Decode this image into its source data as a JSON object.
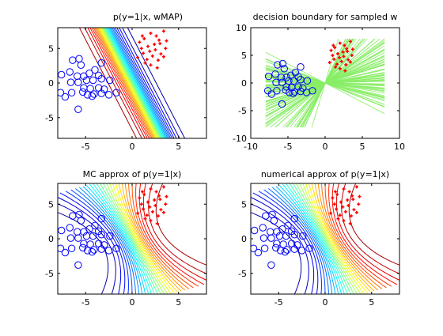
{
  "colors": {
    "class_neg": "#0000ff",
    "class_pos": "#ff0000",
    "sampled_boundary": "#88ee66",
    "axes": "#000000"
  },
  "classes": {
    "negative_marker": "circle",
    "positive_marker": "plus"
  },
  "chart_data": [
    {
      "type": "contour",
      "title": "p(y=1|x, wMAP)",
      "xlim": [
        -8,
        8
      ],
      "ylim": [
        -8,
        8
      ],
      "xticks": [
        -5,
        0,
        5
      ],
      "yticks": [
        -5,
        0,
        5
      ],
      "boundary_model": "linear",
      "w_map": [
        -1.3,
        -0.5
      ],
      "contour_levels": 30,
      "colormap": "jet"
    },
    {
      "type": "line",
      "title": "decision boundary for sampled w",
      "xlim": [
        -10,
        10
      ],
      "ylim": [
        -10,
        10
      ],
      "xticks": [
        -10,
        -5,
        0,
        5,
        10
      ],
      "yticks": [
        -10,
        -5,
        0,
        5,
        10
      ],
      "sample_count": 100,
      "line_extent": [
        -8,
        8
      ]
    },
    {
      "type": "contour",
      "title": "MC approx of p(y=1|x)",
      "xlim": [
        -8,
        8
      ],
      "ylim": [
        -8,
        8
      ],
      "xticks": [
        -5,
        0,
        5
      ],
      "yticks": [
        -5,
        0,
        5
      ],
      "contour_levels": 30,
      "colormap": "jet"
    },
    {
      "type": "contour",
      "title": "numerical approx of p(y=1|x)",
      "xlim": [
        -8,
        8
      ],
      "ylim": [
        -8,
        8
      ],
      "xticks": [
        -5,
        0,
        5
      ],
      "yticks": [
        -5,
        0,
        5
      ],
      "contour_levels": 30,
      "colormap": "jet"
    }
  ],
  "points": {
    "negative": [
      [
        -6.4,
        3.3
      ],
      [
        -5.7,
        3.5
      ],
      [
        -5.5,
        2.6
      ],
      [
        -6.7,
        1.6
      ],
      [
        -7.6,
        1.2
      ],
      [
        -5.9,
        1.0
      ],
      [
        -5.2,
        1.0
      ],
      [
        -4.6,
        1.4
      ],
      [
        -4.0,
        1.9
      ],
      [
        -3.3,
        2.9
      ],
      [
        -3.6,
        1.1
      ],
      [
        -6.6,
        0.1
      ],
      [
        -5.8,
        0.1
      ],
      [
        -4.9,
        0.4
      ],
      [
        -4.2,
        0.4
      ],
      [
        -3.3,
        0.6
      ],
      [
        -2.4,
        0.4
      ],
      [
        -5.2,
        -0.7
      ],
      [
        -4.5,
        -0.8
      ],
      [
        -3.6,
        -0.7
      ],
      [
        -3.0,
        -0.9
      ],
      [
        -7.7,
        -1.4
      ],
      [
        -7.2,
        -2.0
      ],
      [
        -6.5,
        -1.4
      ],
      [
        -5.3,
        -1.3
      ],
      [
        -4.8,
        -1.7
      ],
      [
        -4.1,
        -1.6
      ],
      [
        -3.3,
        -1.5
      ],
      [
        -2.5,
        -1.7
      ],
      [
        -1.7,
        -1.4
      ],
      [
        -5.8,
        -3.8
      ],
      [
        -4.3,
        -1.9
      ]
    ],
    "positive": [
      [
        0.8,
        5.9
      ],
      [
        1.3,
        6.4
      ],
      [
        2.0,
        7.2
      ],
      [
        2.6,
        6.8
      ],
      [
        3.4,
        7.5
      ],
      [
        1.0,
        5.0
      ],
      [
        1.7,
        5.3
      ],
      [
        2.4,
        5.6
      ],
      [
        3.0,
        5.7
      ],
      [
        3.7,
        6.1
      ],
      [
        1.2,
        4.3
      ],
      [
        1.9,
        4.6
      ],
      [
        2.5,
        4.8
      ],
      [
        3.1,
        4.2
      ],
      [
        0.6,
        3.7
      ],
      [
        1.6,
        3.4
      ],
      [
        2.2,
        3.9
      ],
      [
        2.8,
        3.3
      ],
      [
        3.4,
        3.8
      ],
      [
        2.0,
        2.6
      ],
      [
        1.4,
        2.9
      ],
      [
        2.7,
        2.2
      ],
      [
        3.6,
        5.0
      ],
      [
        1.1,
        6.8
      ],
      [
        2.9,
        6.2
      ]
    ]
  }
}
